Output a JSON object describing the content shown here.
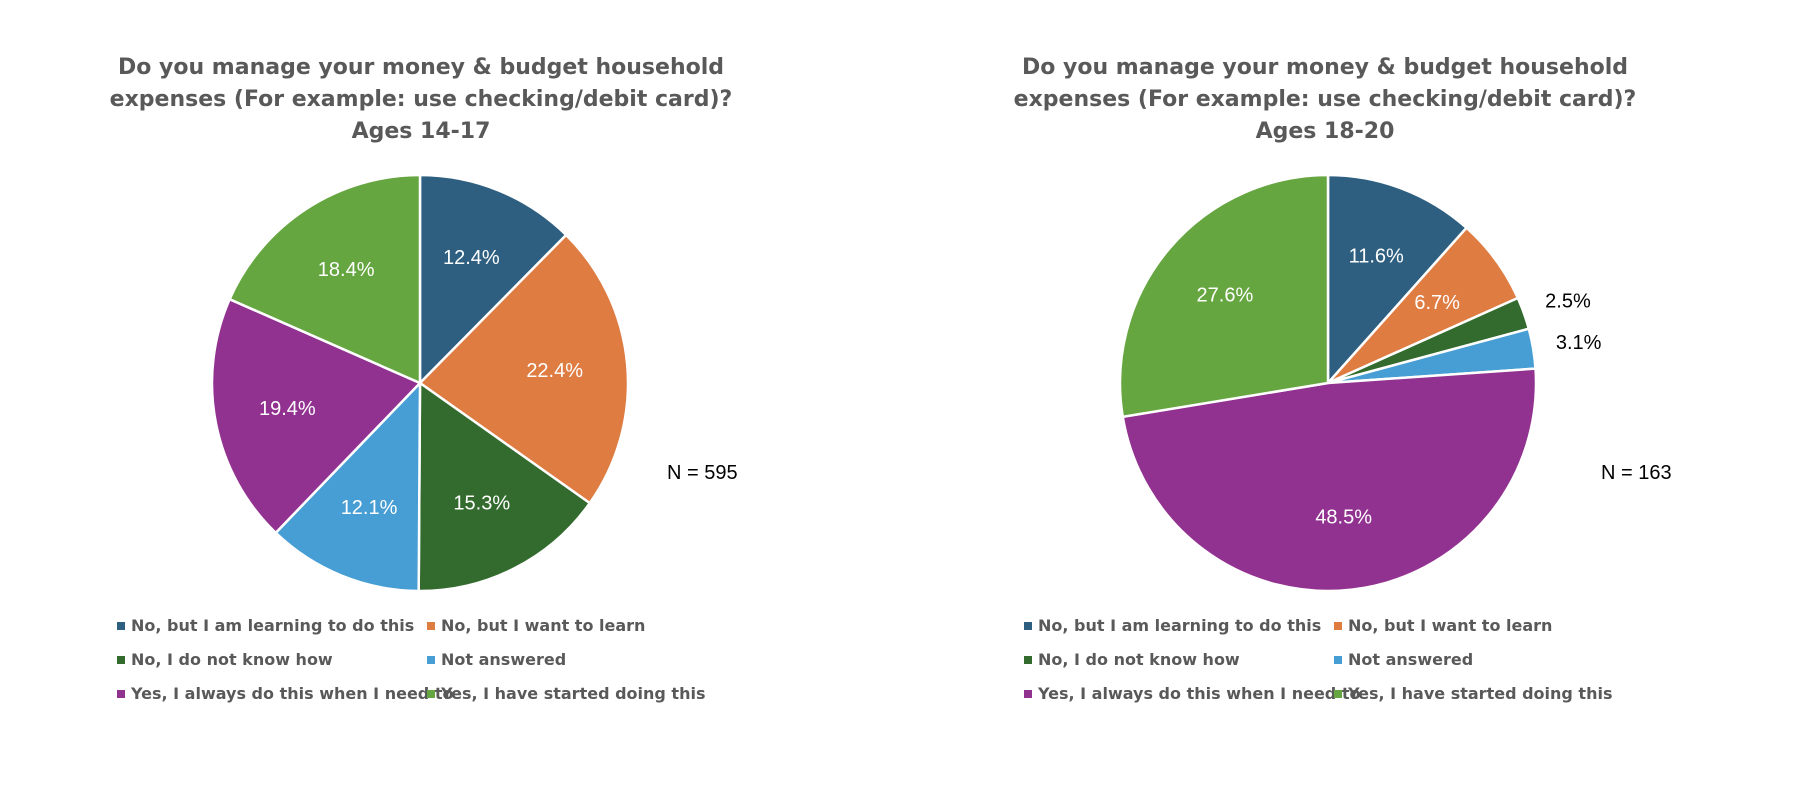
{
  "chart_data": [
    {
      "type": "pie",
      "title": [
        "Do you manage your money & budget household",
        "expenses (For example: use checking/debit card)?",
        "Ages 14-17"
      ],
      "annotation": "N = 595",
      "slices": [
        {
          "name": "No, but I am learning to do this",
          "value": 12.4,
          "label": "12.4%",
          "color": "#2E5F80"
        },
        {
          "name": "No, but I want to learn",
          "value": 22.4,
          "label": "22.4%",
          "color": "#DE7C42"
        },
        {
          "name": "No, I do not know how",
          "value": 15.3,
          "label": "15.3%",
          "color": "#336B2E"
        },
        {
          "name": "Not answered",
          "value": 12.1,
          "label": "12.1%",
          "color": "#479ED4"
        },
        {
          "name": "Yes, I always do this when I need to",
          "value": 19.4,
          "label": "19.4%",
          "color": "#923290"
        },
        {
          "name": "Yes, I have started doing this",
          "value": 18.4,
          "label": "18.4%",
          "color": "#66A640"
        }
      ],
      "legend_position": "bottom"
    },
    {
      "type": "pie",
      "title": [
        "Do you manage your money & budget household",
        "expenses (For example: use checking/debit card)?",
        "Ages 18-20"
      ],
      "annotation": "N = 163",
      "slices": [
        {
          "name": "No, but I am learning to do this",
          "value": 11.6,
          "label": "11.6%",
          "color": "#2E5F80"
        },
        {
          "name": "No, but I want to learn",
          "value": 6.7,
          "label": "6.7%",
          "color": "#DE7C42"
        },
        {
          "name": "No, I do not know how",
          "value": 2.5,
          "label": "2.5%",
          "color": "#336B2E"
        },
        {
          "name": "Not answered",
          "value": 3.1,
          "label": "3.1%",
          "color": "#479ED4"
        },
        {
          "name": "Yes, I always do this when I need to",
          "value": 48.5,
          "label": "48.5%",
          "color": "#923290"
        },
        {
          "name": "Yes, I have started doing this",
          "value": 27.6,
          "label": "27.6%",
          "color": "#66A640"
        }
      ],
      "legend_position": "bottom"
    }
  ]
}
